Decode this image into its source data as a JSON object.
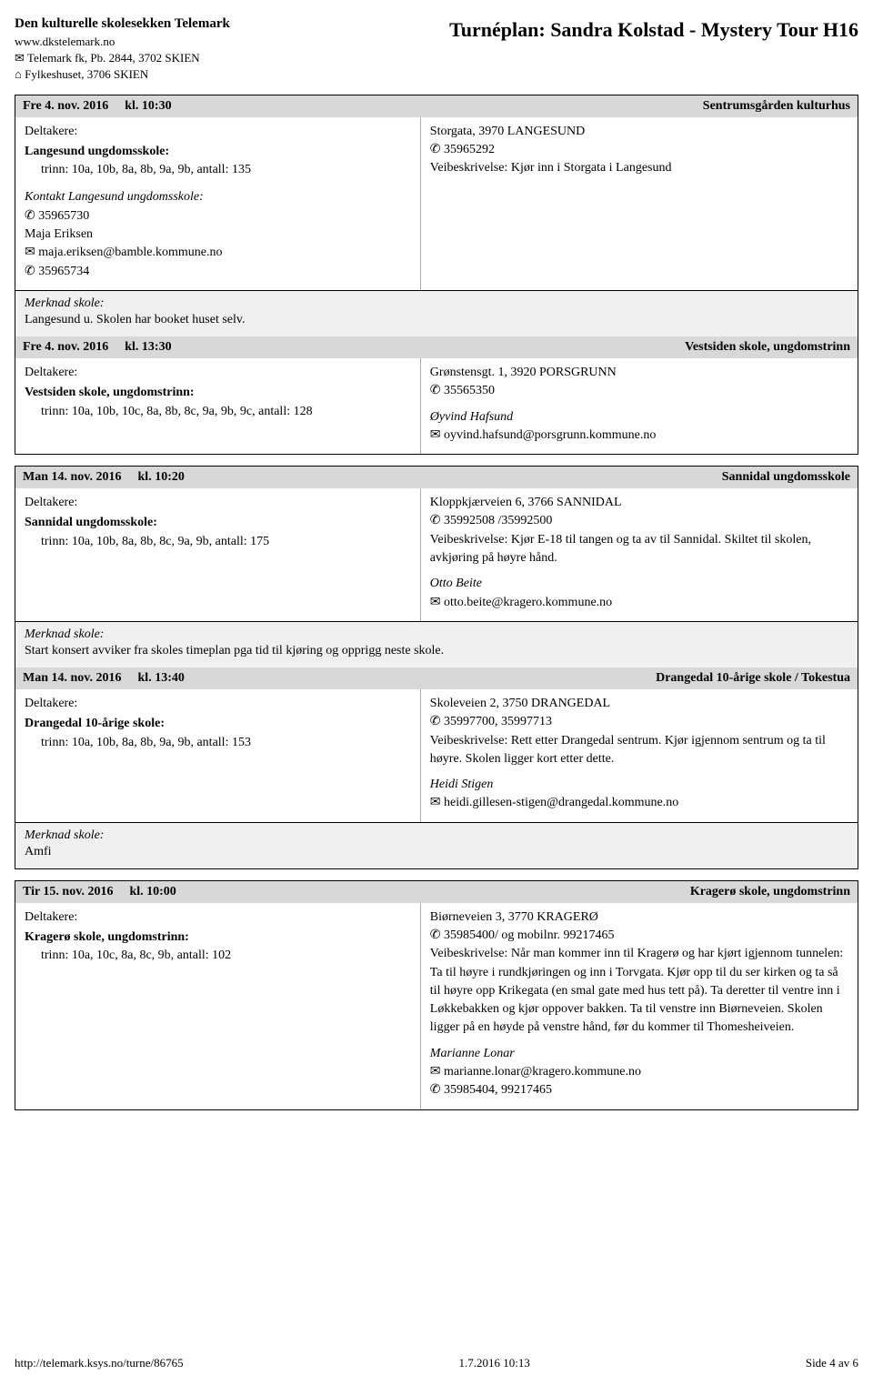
{
  "header": {
    "org_name": "Den kulturelle skolesekken Telemark",
    "org_url": "www.dkstelemark.no",
    "org_address": "Telemark fk, Pb. 2844, 3702 SKIEN",
    "org_location": "Fylkeshuset, 3706 SKIEN",
    "title": "Turnéplan: Sandra Kolstad - Mystery Tour H16"
  },
  "events": [
    {
      "date": "Fre 4. nov. 2016",
      "time": "kl. 10:30",
      "venue": "Sentrumsgården kulturhus",
      "deltakere_label": "Deltakere:",
      "school": "Langesund ungdomsskole:",
      "trinn": "trinn: 10a, 10b, 8a, 8b, 9a, 9b, antall: 135",
      "contact_title": "Kontakt Langesund ungdomsskole:",
      "contact_lines": [
        "✆ 35965730",
        "Maja Eriksen",
        "✉ maja.eriksen@bamble.kommune.no",
        "✆ 35965734"
      ],
      "right_lines": [
        "Storgata, 3970 LANGESUND",
        "✆ 35965292",
        "Veibeskrivelse: Kjør inn i Storgata i Langesund"
      ],
      "merknad_label": "Merknad skole:",
      "merknad_text": "Langesund u. Skolen har booket huset selv.",
      "has_merknad": true,
      "nested": true
    },
    {
      "date": "Fre 4. nov. 2016",
      "time": "kl. 13:30",
      "venue": "Vestsiden skole, ungdomstrinn",
      "deltakere_label": "Deltakere:",
      "school": "Vestsiden skole, ungdomstrinn:",
      "trinn": "trinn: 10a, 10b, 10c, 8a, 8b, 8c, 9a, 9b, 9c, antall: 128",
      "right_lines": [
        "Grønstensgt. 1, 3920 PORSGRUNN",
        "✆ 35565350"
      ],
      "right_person": "Øyvind Hafsund",
      "right_extra": [
        "✉ oyvind.hafsund@porsgrunn.kommune.no"
      ],
      "has_merknad": false
    },
    {
      "date": "Man 14. nov. 2016",
      "time": "kl. 10:20",
      "venue": "Sannidal ungdomsskole",
      "deltakere_label": "Deltakere:",
      "school": "Sannidal ungdomsskole:",
      "trinn": "trinn: 10a, 10b, 8a, 8b, 8c, 9a, 9b, antall: 175",
      "right_lines": [
        "Kloppkjærveien 6, 3766 SANNIDAL",
        "✆ 35992508 /35992500",
        "Veibeskrivelse: Kjør E-18 til tangen og ta av til Sannidal. Skiltet til skolen, avkjøring på høyre hånd."
      ],
      "right_person": "Otto Beite",
      "right_extra": [
        "✉ otto.beite@kragero.kommune.no"
      ],
      "merknad_label": "Merknad skole:",
      "merknad_text": "Start konsert avviker fra skoles timeplan pga tid til kjøring og opprigg neste skole.",
      "has_merknad": true,
      "nested": true
    },
    {
      "date": "Man 14. nov. 2016",
      "time": "kl. 13:40",
      "venue": "Drangedal 10-årige skole / Tokestua",
      "deltakere_label": "Deltakere:",
      "school": "Drangedal 10-årige skole:",
      "trinn": "trinn: 10a, 10b, 8a, 8b, 9a, 9b, antall: 153",
      "right_lines": [
        "Skoleveien 2, 3750 DRANGEDAL",
        "✆ 35997700, 35997713",
        "Veibeskrivelse: Rett etter Drangedal sentrum. Kjør igjennom sentrum og ta til høyre. Skolen ligger kort etter dette."
      ],
      "right_person": "Heidi Stigen",
      "right_extra": [
        "✉ heidi.gillesen-stigen@drangedal.kommune.no"
      ],
      "merknad_label": "Merknad skole:",
      "merknad_text": "Amfi",
      "has_merknad": true
    },
    {
      "date": "Tir 15. nov. 2016",
      "time": "kl. 10:00",
      "venue": "Kragerø skole, ungdomstrinn",
      "deltakere_label": "Deltakere:",
      "school": "Kragerø skole, ungdomstrinn:",
      "trinn": "trinn: 10a, 10c, 8a, 8c, 9b, antall: 102",
      "right_lines": [
        "Biørneveien 3, 3770 KRAGERØ",
        "✆ 35985400/ og mobilnr. 99217465",
        "Veibeskrivelse: Når man kommer inn til Kragerø og har kjørt igjennom tunnelen: Ta til høyre i rundkjøringen og inn i Torvgata. Kjør opp til du ser kirken og ta så til høyre opp Krikegata (en smal gate med hus tett på). Ta deretter til ventre inn i Løkkebakken og kjør oppover bakken. Ta til venstre inn Biørneveien. Skolen ligger på en høyde på venstre hånd, før du kommer til Thomesheiveien."
      ],
      "right_person": "Marianne Lonar",
      "right_extra": [
        "✉ marianne.lonar@kragero.kommune.no",
        "✆ 35985404, 99217465"
      ],
      "has_merknad": false
    }
  ],
  "footer": {
    "url": "http://telemark.ksys.no/turne/86765",
    "timestamp": "1.7.2016 10:13",
    "page": "Side 4 av 6"
  }
}
